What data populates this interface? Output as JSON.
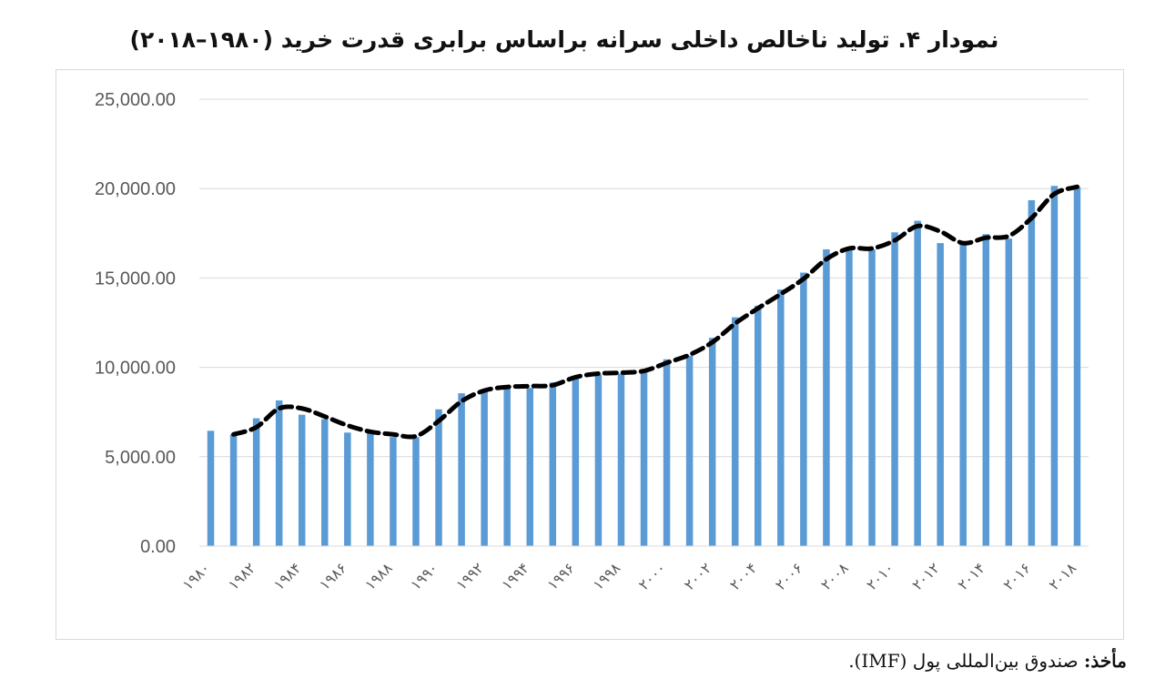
{
  "title": "نمودار ۴. تولید ناخالص داخلی سرانه براساس برابری قدرت خرید (۱۹۸۰–۲۰۱۸)",
  "source": {
    "label": "مأخذ:",
    "text": " صندوق بین‌المللی پول (IMF)."
  },
  "colors": {
    "bar": "#5b9bd5",
    "trend": "#000000",
    "grid": "#d9d9d9",
    "tick_text": "#595959"
  },
  "chart_data": {
    "type": "bar",
    "ylim": [
      0,
      25000
    ],
    "y_ticks": [
      "0.00",
      "5,000.00",
      "10,000.00",
      "15,000.00",
      "20,000.00",
      "25,000.00"
    ],
    "y_tick_values": [
      0,
      5000,
      10000,
      15000,
      20000,
      25000
    ],
    "x_tick_labels": [
      "۱۹۸۰",
      "۱۹۸۲",
      "۱۹۸۴",
      "۱۹۸۶",
      "۱۹۸۸",
      "۱۹۹۰",
      "۱۹۹۲",
      "۱۹۹۴",
      "۱۹۹۶",
      "۱۹۹۸",
      "۲۰۰۰",
      "۲۰۰۲",
      "۲۰۰۴",
      "۲۰۰۶",
      "۲۰۰۸",
      "۲۰۱۰",
      "۲۰۱۲",
      "۲۰۱۴",
      "۲۰۱۶",
      "۲۰۱۸"
    ],
    "categories": [
      1980,
      1981,
      1982,
      1983,
      1984,
      1985,
      1986,
      1987,
      1988,
      1989,
      1990,
      1991,
      1992,
      1993,
      1994,
      1995,
      1996,
      1997,
      1998,
      1999,
      2000,
      2001,
      2002,
      2003,
      2004,
      2005,
      2006,
      2007,
      2008,
      2009,
      2010,
      2011,
      2012,
      2013,
      2014,
      2015,
      2016,
      2017,
      2018
    ],
    "values": [
      6450,
      6250,
      7150,
      8150,
      7350,
      7100,
      6350,
      6400,
      6100,
      6100,
      7650,
      8550,
      8700,
      8900,
      8850,
      9150,
      9500,
      9600,
      9650,
      9750,
      10450,
      10650,
      11650,
      12800,
      13450,
      14350,
      15300,
      16600,
      16650,
      16600,
      17550,
      18200,
      16950,
      17050,
      17450,
      17200,
      19350,
      20150,
      20100
    ],
    "trend": {
      "style": "dashed",
      "start_category": 1981,
      "values": [
        6250,
        6650,
        7700,
        7700,
        7250,
        6750,
        6400,
        6250,
        6150,
        7000,
        8100,
        8700,
        8900,
        8950,
        9000,
        9450,
        9650,
        9700,
        9800,
        10250,
        10700,
        11400,
        12450,
        13300,
        14100,
        14950,
        16050,
        16650,
        16650,
        17100,
        17900,
        17600,
        16950,
        17250,
        17350,
        18350,
        19700,
        20100
      ]
    },
    "grid": true,
    "legend": "none"
  }
}
